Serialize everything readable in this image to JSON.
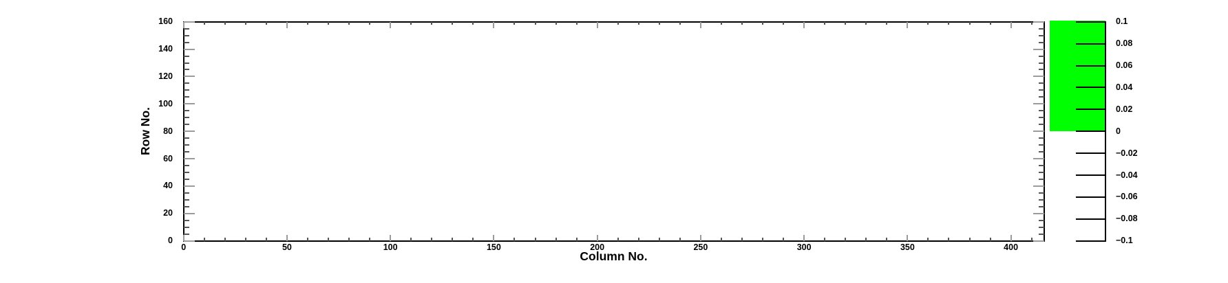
{
  "chart_data": {
    "type": "heatmap",
    "title": "",
    "xlabel": "Column No.",
    "ylabel": "Row No.",
    "xlim": [
      0,
      416
    ],
    "ylim": [
      0,
      160
    ],
    "zlim": [
      -0.1,
      0.1
    ],
    "grid": false,
    "legend_position": "colorbar-right",
    "x_major_ticks": [
      0,
      50,
      100,
      150,
      200,
      250,
      300,
      350,
      400
    ],
    "x_minor_step": 10,
    "y_major_ticks": [
      0,
      20,
      40,
      60,
      80,
      100,
      120,
      140,
      160
    ],
    "y_minor_step": 5,
    "colorbar": {
      "tick_values": [
        0.1,
        0.08,
        0.06,
        0.04,
        0.02,
        0,
        -0.02,
        -0.04,
        -0.06,
        -0.08,
        -0.1
      ],
      "tick_labels": [
        "0.1",
        "0.08",
        "0.06",
        "0.04",
        "0.02",
        "0",
        "−0.02",
        "−0.04",
        "−0.06",
        "−0.08",
        "−0.1"
      ],
      "fill_color": "#00ff00",
      "filled_range": [
        0,
        0.1
      ],
      "empty_color": "#ffffff"
    },
    "values": [],
    "plot_area_empty": true
  },
  "colors": {
    "frame": "#000000",
    "major_tick": "#9b9b9b",
    "minor_tick": "#555555",
    "colorbar_tick": "#000000",
    "text": "#000000",
    "background": "#ffffff"
  }
}
